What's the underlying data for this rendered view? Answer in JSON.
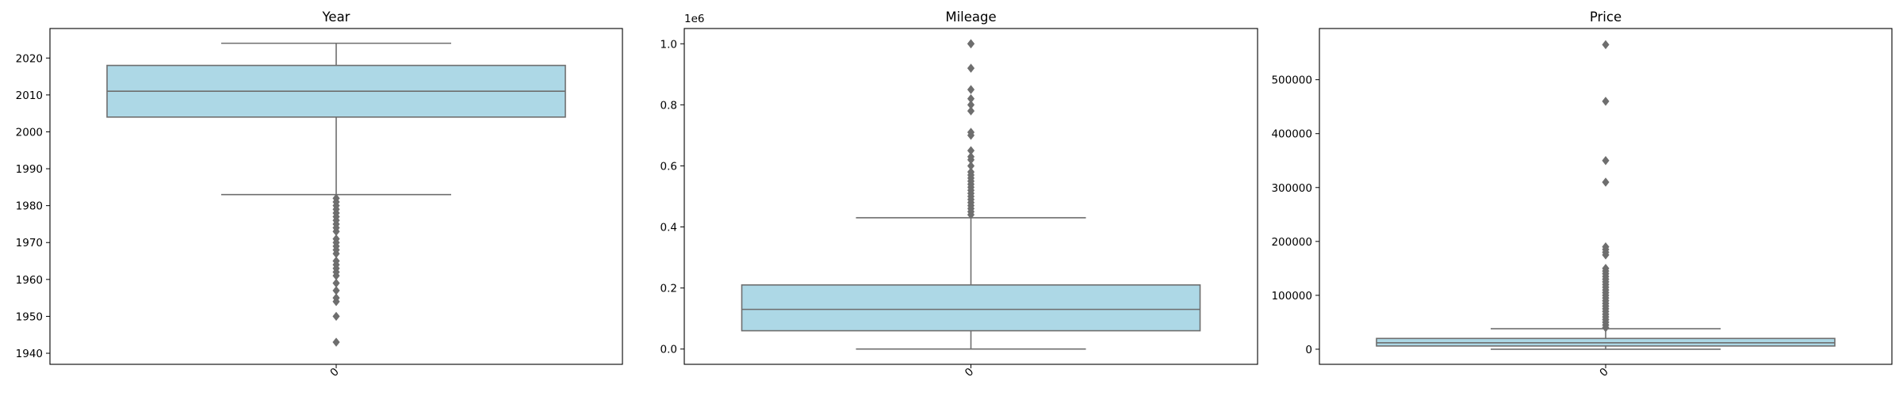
{
  "figure": {
    "style": {
      "box_color": "#add8e6",
      "line_color": "#6e6e6e",
      "outlier_color": "#6e6e6e",
      "background": "#ffffff"
    }
  },
  "chart_data": [
    {
      "type": "box",
      "title": "Year",
      "xlabel": "",
      "ylabel": "",
      "category": "0",
      "ylim": [
        1937,
        2028
      ],
      "yticks": [
        1940,
        1950,
        1960,
        1970,
        1980,
        1990,
        2000,
        2010,
        2020
      ],
      "ytick_labels": [
        "1940",
        "1950",
        "1960",
        "1970",
        "1980",
        "1990",
        "2000",
        "2010",
        "2020"
      ],
      "offset_text": "",
      "box": {
        "whisker_low": 1983,
        "q1": 2004,
        "median": 2011,
        "q3": 2018,
        "whisker_high": 2024
      },
      "outliers": [
        1943,
        1950,
        1954,
        1955,
        1957,
        1959,
        1961,
        1962,
        1963,
        1964,
        1965,
        1967,
        1968,
        1969,
        1970,
        1971,
        1973,
        1974,
        1975,
        1976,
        1977,
        1978,
        1979,
        1980,
        1981,
        1982
      ]
    },
    {
      "type": "box",
      "title": "Mileage",
      "xlabel": "",
      "ylabel": "",
      "category": "0",
      "ylim": [
        -0.05,
        1.05
      ],
      "yticks": [
        0.0,
        0.2,
        0.4,
        0.6,
        0.8,
        1.0
      ],
      "ytick_labels": [
        "0.0",
        "0.2",
        "0.4",
        "0.6",
        "0.8",
        "1.0"
      ],
      "offset_text": "1e6",
      "box": {
        "whisker_low": 0.0,
        "q1": 0.06,
        "median": 0.13,
        "q3": 0.21,
        "whisker_high": 0.43
      },
      "outliers": [
        0.44,
        0.45,
        0.46,
        0.47,
        0.48,
        0.49,
        0.5,
        0.51,
        0.52,
        0.53,
        0.54,
        0.55,
        0.56,
        0.57,
        0.58,
        0.6,
        0.62,
        0.63,
        0.65,
        0.7,
        0.71,
        0.78,
        0.8,
        0.82,
        0.85,
        0.92,
        1.0,
        1.0
      ]
    },
    {
      "type": "box",
      "title": "Price",
      "xlabel": "",
      "ylabel": "",
      "category": "0",
      "ylim": [
        -28000,
        595000
      ],
      "yticks": [
        0,
        100000,
        200000,
        300000,
        400000,
        500000
      ],
      "ytick_labels": [
        "0",
        "100000",
        "200000",
        "300000",
        "400000",
        "500000"
      ],
      "offset_text": "",
      "box": {
        "whisker_low": 0,
        "q1": 6000,
        "median": 12000,
        "q3": 20000,
        "whisker_high": 38000
      },
      "outliers": [
        40000,
        45000,
        50000,
        55000,
        60000,
        65000,
        70000,
        75000,
        80000,
        85000,
        90000,
        95000,
        100000,
        105000,
        110000,
        115000,
        120000,
        125000,
        130000,
        135000,
        140000,
        145000,
        150000,
        175000,
        180000,
        185000,
        190000,
        310000,
        350000,
        460000,
        565000
      ]
    }
  ]
}
